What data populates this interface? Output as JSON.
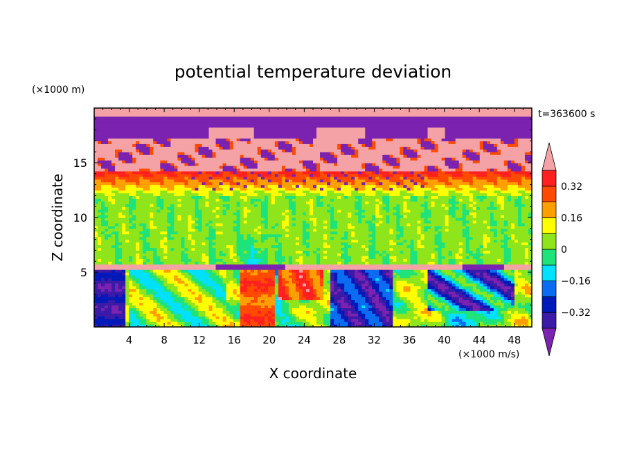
{
  "chart_data": {
    "type": "heatmap",
    "title": "potential temperature deviation",
    "xlabel": "X coordinate",
    "ylabel": "Z coordinate",
    "x_unit": "(×1000 m/s)",
    "y_unit": "(×1000 m)",
    "time_label": "t=363600 s",
    "xlim": [
      0,
      50
    ],
    "ylim": [
      0,
      20
    ],
    "x_ticks": [
      4,
      8,
      12,
      16,
      20,
      24,
      28,
      32,
      36,
      40,
      44,
      48
    ],
    "y_ticks": [
      5,
      10,
      15
    ],
    "colorbar": {
      "levels": [
        -0.4,
        -0.32,
        -0.24,
        -0.16,
        -0.08,
        0,
        0.08,
        0.16,
        0.24,
        0.32,
        0.4
      ],
      "tick_labels": [
        "0.32",
        "0.16",
        "0",
        "−0.16",
        "−0.32"
      ],
      "tick_values": [
        0.32,
        0.16,
        0,
        -0.16,
        -0.32
      ],
      "colors": [
        "#7b22b0",
        "#3b1aa8",
        "#0019b8",
        "#0a6cf0",
        "#00e0ff",
        "#1ee37a",
        "#8fe51b",
        "#ffff00",
        "#ff9f00",
        "#ff4a00",
        "#ff2020",
        "#f4a2a6"
      ],
      "extend": "both"
    },
    "layers": [
      {
        "z": [
          0,
          5.2
        ],
        "pattern": "turbulent mixed, mostly positive near x≈16–26, negative (purple/blue) near x≈0–4 and x≈28–48"
      },
      {
        "z": [
          5.2,
          5.8
        ],
        "pattern": "thin strong positive band (pink) with purple patches near x≈14–22 and x≈42–48"
      },
      {
        "z": [
          5.8,
          12
        ],
        "pattern": "near zero (green), slightly negative (cyan) near x≈17–21 around z≈6–8"
      },
      {
        "z": [
          12,
          14.5
        ],
        "pattern": "weakly positive (yellow to red) increasing with height"
      },
      {
        "z": [
          14.5,
          17
        ],
        "pattern": "strong positive (pink) mixed with strong negative (purple) speckles"
      },
      {
        "z": [
          17,
          19.2
        ],
        "pattern": "strong negative (purple) band"
      },
      {
        "z": [
          19.2,
          20
        ],
        "pattern": "strong positive (pink) cap"
      }
    ]
  }
}
